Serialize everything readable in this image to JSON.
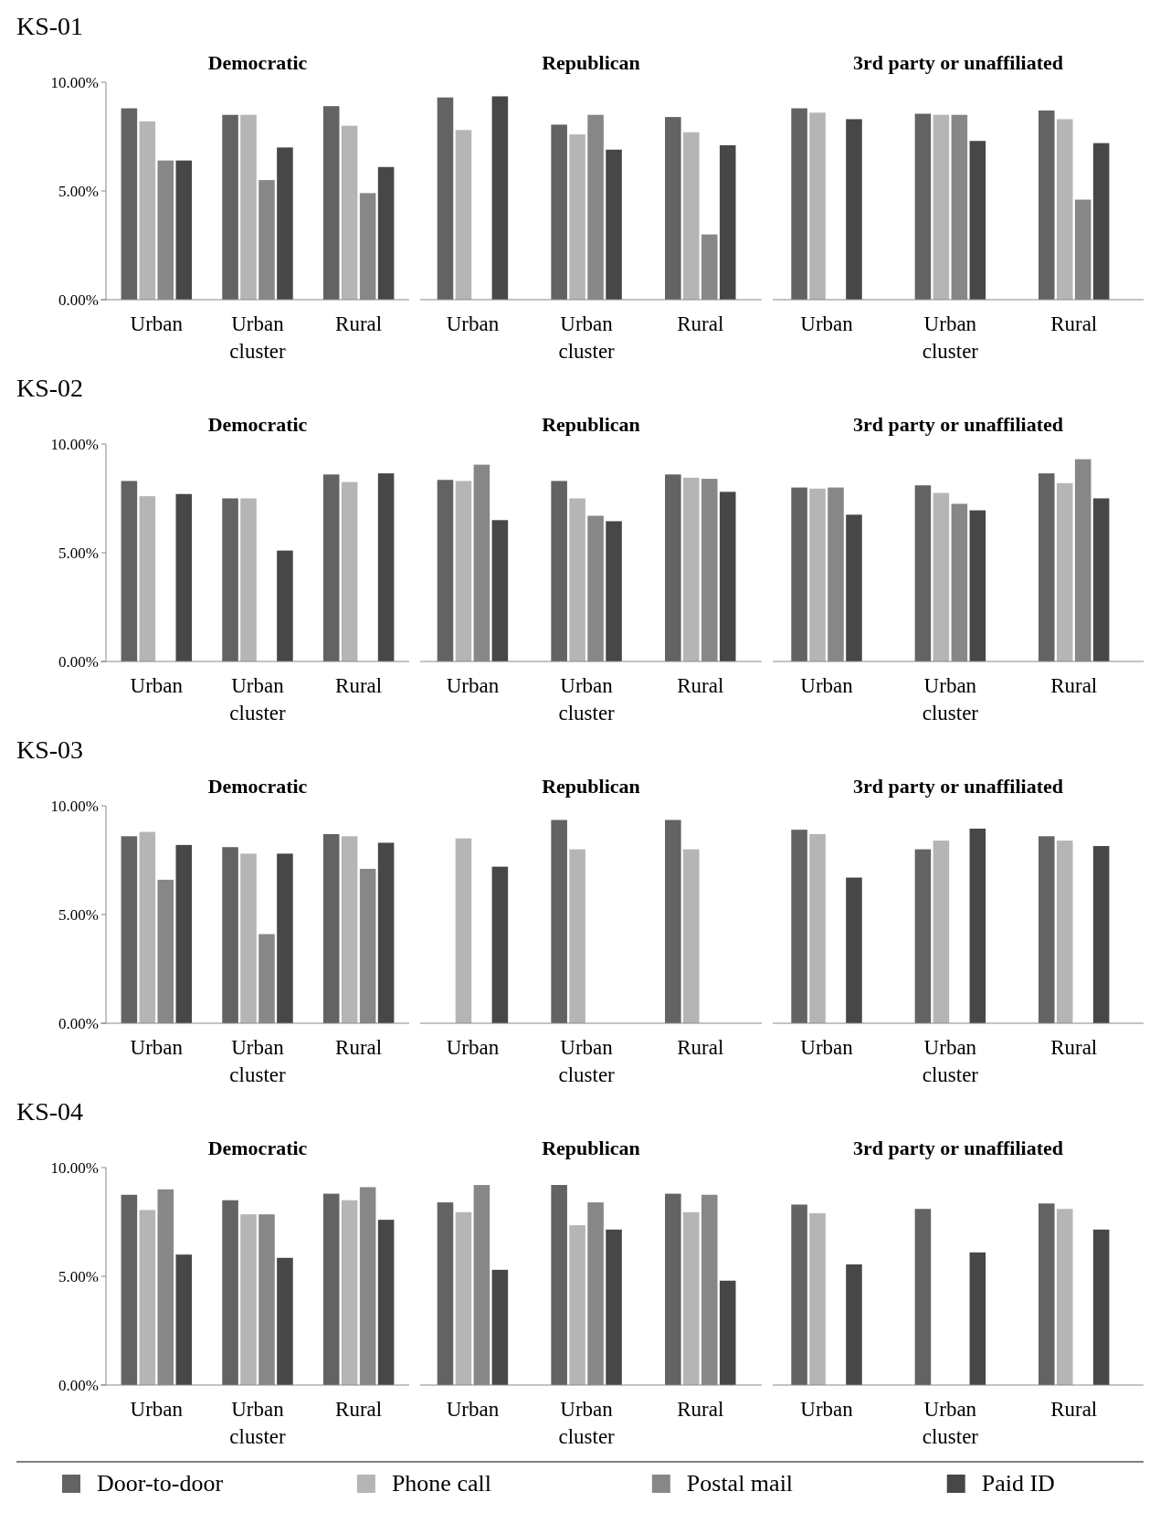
{
  "chart_data": [
    {
      "type": "bar",
      "title": "KS-01",
      "annotations": [
        "Democratic",
        "Republican",
        "3rd party or unaffiliated"
      ],
      "categories": [
        "Urban",
        "Urban cluster",
        "Rural",
        "Urban",
        "Urban cluster",
        "Rural",
        "Urban",
        "Urban cluster",
        "Rural"
      ],
      "ylim": [
        0,
        10
      ],
      "yticks": [
        {
          "value": 0,
          "label": "0.00%"
        },
        {
          "value": 5,
          "label": "5.00%"
        },
        {
          "value": 10,
          "label": "10.00%"
        }
      ],
      "legend": "bottom",
      "series": [
        {
          "name": "Door-to-door",
          "color": "#636363",
          "values": [
            8.8,
            8.5,
            8.9,
            9.3,
            8.05,
            8.4,
            8.8,
            8.55,
            8.7
          ]
        },
        {
          "name": "Phone call",
          "color": "#b5b5b5",
          "values": [
            8.2,
            8.5,
            8.0,
            7.8,
            7.6,
            7.7,
            8.6,
            8.5,
            8.3
          ]
        },
        {
          "name": "Postal mail",
          "color": "#878787",
          "values": [
            6.4,
            5.5,
            4.9,
            null,
            8.5,
            3.0,
            null,
            8.5,
            4.6
          ]
        },
        {
          "name": "Paid ID",
          "color": "#474747",
          "values": [
            6.4,
            7.0,
            6.1,
            9.35,
            6.9,
            7.1,
            8.3,
            7.3,
            7.2
          ]
        }
      ]
    },
    {
      "type": "bar",
      "title": "KS-02",
      "annotations": [
        "Democratic",
        "Republican",
        "3rd party or unaffiliated"
      ],
      "categories": [
        "Urban",
        "Urban cluster",
        "Rural",
        "Urban",
        "Urban cluster",
        "Rural",
        "Urban",
        "Urban cluster",
        "Rural"
      ],
      "ylim": [
        0,
        10
      ],
      "yticks": [
        {
          "value": 0,
          "label": "0.00%"
        },
        {
          "value": 5,
          "label": "5.00%"
        },
        {
          "value": 10,
          "label": "10.00%"
        }
      ],
      "series": [
        {
          "color": "#636363",
          "values": [
            8.3,
            7.5,
            8.6,
            8.35,
            8.3,
            8.6,
            8.0,
            8.1,
            8.65
          ]
        },
        {
          "color": "#b5b5b5",
          "values": [
            7.6,
            7.5,
            8.25,
            8.3,
            7.5,
            8.45,
            7.95,
            7.75,
            8.2
          ]
        },
        {
          "color": "#878787",
          "values": [
            null,
            null,
            null,
            9.05,
            6.7,
            8.4,
            8.0,
            7.25,
            9.3
          ]
        },
        {
          "color": "#474747",
          "values": [
            7.7,
            5.1,
            8.65,
            6.5,
            6.45,
            7.8,
            6.75,
            6.95,
            7.5
          ]
        }
      ]
    },
    {
      "type": "bar",
      "title": "KS-03",
      "annotations": [
        "Democratic",
        "Republican",
        "3rd party or unaffiliated"
      ],
      "categories": [
        "Urban",
        "Urban cluster",
        "Rural",
        "Urban",
        "Urban cluster",
        "Rural",
        "Urban",
        "Urban cluster",
        "Rural"
      ],
      "ylim": [
        0,
        10
      ],
      "yticks": [
        {
          "value": 0,
          "label": "0.00%"
        },
        {
          "value": 5,
          "label": "5.00%"
        },
        {
          "value": 10,
          "label": "10.00%"
        }
      ],
      "series": [
        {
          "color": "#636363",
          "values": [
            8.6,
            8.1,
            8.7,
            null,
            9.35,
            9.35,
            8.9,
            8.0,
            8.6
          ]
        },
        {
          "color": "#b5b5b5",
          "values": [
            8.8,
            7.8,
            8.6,
            8.5,
            8.0,
            8.0,
            8.7,
            8.4,
            8.4
          ]
        },
        {
          "color": "#878787",
          "values": [
            6.6,
            4.1,
            7.1,
            null,
            null,
            null,
            null,
            null,
            null
          ]
        },
        {
          "color": "#474747",
          "values": [
            8.2,
            7.8,
            8.3,
            7.2,
            null,
            null,
            6.7,
            8.95,
            8.15
          ]
        }
      ]
    },
    {
      "type": "bar",
      "title": "KS-04",
      "annotations": [
        "Democratic",
        "Republican",
        "3rd party or unaffiliated"
      ],
      "categories": [
        "Urban",
        "Urban cluster",
        "Rural",
        "Urban",
        "Urban cluster",
        "Rural",
        "Urban",
        "Urban cluster",
        "Rural"
      ],
      "ylim": [
        0,
        10
      ],
      "yticks": [
        {
          "value": 0,
          "label": "0.00%"
        },
        {
          "value": 5,
          "label": "5.00%"
        },
        {
          "value": 10,
          "label": "10.00%"
        }
      ],
      "series": [
        {
          "color": "#636363",
          "values": [
            8.75,
            8.5,
            8.8,
            8.4,
            9.2,
            8.8,
            8.3,
            8.1,
            8.35
          ]
        },
        {
          "color": "#b5b5b5",
          "values": [
            8.05,
            7.85,
            8.5,
            7.95,
            7.35,
            7.95,
            7.9,
            null,
            8.1
          ]
        },
        {
          "color": "#878787",
          "values": [
            9.0,
            7.85,
            9.1,
            9.2,
            8.4,
            8.75,
            null,
            null,
            null
          ]
        },
        {
          "color": "#474747",
          "values": [
            6.0,
            5.85,
            7.6,
            5.3,
            7.15,
            4.8,
            5.55,
            6.1,
            7.15
          ]
        }
      ]
    }
  ]
}
